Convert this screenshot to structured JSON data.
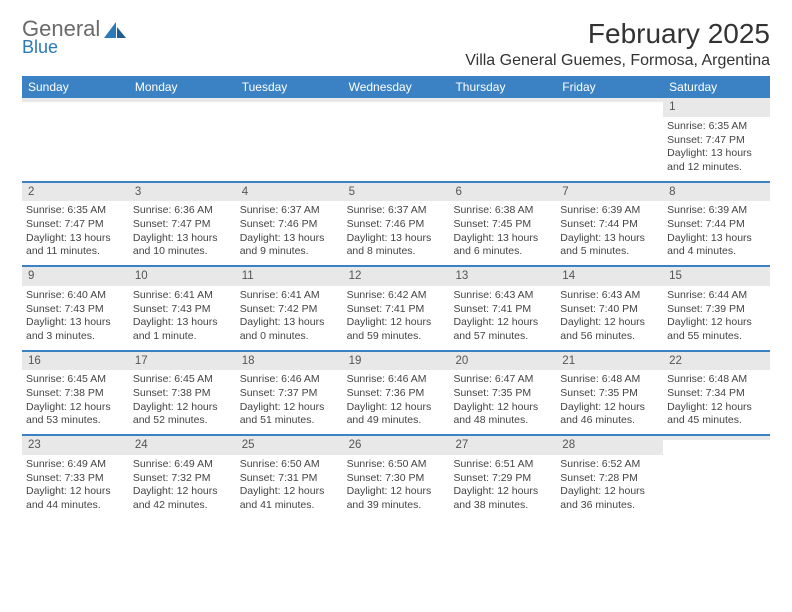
{
  "logo": {
    "word1": "General",
    "word2": "Blue"
  },
  "title": "February 2025",
  "location": "Villa General Guemes, Formosa, Argentina",
  "colors": {
    "header_bg": "#3b82c4",
    "header_text": "#ffffff",
    "daynum_bg": "#e8e8e8",
    "body_text": "#444444",
    "page_bg": "#ffffff",
    "rule": "#3b82c4"
  },
  "day_labels": [
    "Sunday",
    "Monday",
    "Tuesday",
    "Wednesday",
    "Thursday",
    "Friday",
    "Saturday"
  ],
  "weeks": [
    [
      {
        "n": "",
        "sunrise": "",
        "sunset": "",
        "daylight": ""
      },
      {
        "n": "",
        "sunrise": "",
        "sunset": "",
        "daylight": ""
      },
      {
        "n": "",
        "sunrise": "",
        "sunset": "",
        "daylight": ""
      },
      {
        "n": "",
        "sunrise": "",
        "sunset": "",
        "daylight": ""
      },
      {
        "n": "",
        "sunrise": "",
        "sunset": "",
        "daylight": ""
      },
      {
        "n": "",
        "sunrise": "",
        "sunset": "",
        "daylight": ""
      },
      {
        "n": "1",
        "sunrise": "Sunrise: 6:35 AM",
        "sunset": "Sunset: 7:47 PM",
        "daylight": "Daylight: 13 hours and 12 minutes."
      }
    ],
    [
      {
        "n": "2",
        "sunrise": "Sunrise: 6:35 AM",
        "sunset": "Sunset: 7:47 PM",
        "daylight": "Daylight: 13 hours and 11 minutes."
      },
      {
        "n": "3",
        "sunrise": "Sunrise: 6:36 AM",
        "sunset": "Sunset: 7:47 PM",
        "daylight": "Daylight: 13 hours and 10 minutes."
      },
      {
        "n": "4",
        "sunrise": "Sunrise: 6:37 AM",
        "sunset": "Sunset: 7:46 PM",
        "daylight": "Daylight: 13 hours and 9 minutes."
      },
      {
        "n": "5",
        "sunrise": "Sunrise: 6:37 AM",
        "sunset": "Sunset: 7:46 PM",
        "daylight": "Daylight: 13 hours and 8 minutes."
      },
      {
        "n": "6",
        "sunrise": "Sunrise: 6:38 AM",
        "sunset": "Sunset: 7:45 PM",
        "daylight": "Daylight: 13 hours and 6 minutes."
      },
      {
        "n": "7",
        "sunrise": "Sunrise: 6:39 AM",
        "sunset": "Sunset: 7:44 PM",
        "daylight": "Daylight: 13 hours and 5 minutes."
      },
      {
        "n": "8",
        "sunrise": "Sunrise: 6:39 AM",
        "sunset": "Sunset: 7:44 PM",
        "daylight": "Daylight: 13 hours and 4 minutes."
      }
    ],
    [
      {
        "n": "9",
        "sunrise": "Sunrise: 6:40 AM",
        "sunset": "Sunset: 7:43 PM",
        "daylight": "Daylight: 13 hours and 3 minutes."
      },
      {
        "n": "10",
        "sunrise": "Sunrise: 6:41 AM",
        "sunset": "Sunset: 7:43 PM",
        "daylight": "Daylight: 13 hours and 1 minute."
      },
      {
        "n": "11",
        "sunrise": "Sunrise: 6:41 AM",
        "sunset": "Sunset: 7:42 PM",
        "daylight": "Daylight: 13 hours and 0 minutes."
      },
      {
        "n": "12",
        "sunrise": "Sunrise: 6:42 AM",
        "sunset": "Sunset: 7:41 PM",
        "daylight": "Daylight: 12 hours and 59 minutes."
      },
      {
        "n": "13",
        "sunrise": "Sunrise: 6:43 AM",
        "sunset": "Sunset: 7:41 PM",
        "daylight": "Daylight: 12 hours and 57 minutes."
      },
      {
        "n": "14",
        "sunrise": "Sunrise: 6:43 AM",
        "sunset": "Sunset: 7:40 PM",
        "daylight": "Daylight: 12 hours and 56 minutes."
      },
      {
        "n": "15",
        "sunrise": "Sunrise: 6:44 AM",
        "sunset": "Sunset: 7:39 PM",
        "daylight": "Daylight: 12 hours and 55 minutes."
      }
    ],
    [
      {
        "n": "16",
        "sunrise": "Sunrise: 6:45 AM",
        "sunset": "Sunset: 7:38 PM",
        "daylight": "Daylight: 12 hours and 53 minutes."
      },
      {
        "n": "17",
        "sunrise": "Sunrise: 6:45 AM",
        "sunset": "Sunset: 7:38 PM",
        "daylight": "Daylight: 12 hours and 52 minutes."
      },
      {
        "n": "18",
        "sunrise": "Sunrise: 6:46 AM",
        "sunset": "Sunset: 7:37 PM",
        "daylight": "Daylight: 12 hours and 51 minutes."
      },
      {
        "n": "19",
        "sunrise": "Sunrise: 6:46 AM",
        "sunset": "Sunset: 7:36 PM",
        "daylight": "Daylight: 12 hours and 49 minutes."
      },
      {
        "n": "20",
        "sunrise": "Sunrise: 6:47 AM",
        "sunset": "Sunset: 7:35 PM",
        "daylight": "Daylight: 12 hours and 48 minutes."
      },
      {
        "n": "21",
        "sunrise": "Sunrise: 6:48 AM",
        "sunset": "Sunset: 7:35 PM",
        "daylight": "Daylight: 12 hours and 46 minutes."
      },
      {
        "n": "22",
        "sunrise": "Sunrise: 6:48 AM",
        "sunset": "Sunset: 7:34 PM",
        "daylight": "Daylight: 12 hours and 45 minutes."
      }
    ],
    [
      {
        "n": "23",
        "sunrise": "Sunrise: 6:49 AM",
        "sunset": "Sunset: 7:33 PM",
        "daylight": "Daylight: 12 hours and 44 minutes."
      },
      {
        "n": "24",
        "sunrise": "Sunrise: 6:49 AM",
        "sunset": "Sunset: 7:32 PM",
        "daylight": "Daylight: 12 hours and 42 minutes."
      },
      {
        "n": "25",
        "sunrise": "Sunrise: 6:50 AM",
        "sunset": "Sunset: 7:31 PM",
        "daylight": "Daylight: 12 hours and 41 minutes."
      },
      {
        "n": "26",
        "sunrise": "Sunrise: 6:50 AM",
        "sunset": "Sunset: 7:30 PM",
        "daylight": "Daylight: 12 hours and 39 minutes."
      },
      {
        "n": "27",
        "sunrise": "Sunrise: 6:51 AM",
        "sunset": "Sunset: 7:29 PM",
        "daylight": "Daylight: 12 hours and 38 minutes."
      },
      {
        "n": "28",
        "sunrise": "Sunrise: 6:52 AM",
        "sunset": "Sunset: 7:28 PM",
        "daylight": "Daylight: 12 hours and 36 minutes."
      },
      {
        "n": "",
        "sunrise": "",
        "sunset": "",
        "daylight": ""
      }
    ]
  ]
}
